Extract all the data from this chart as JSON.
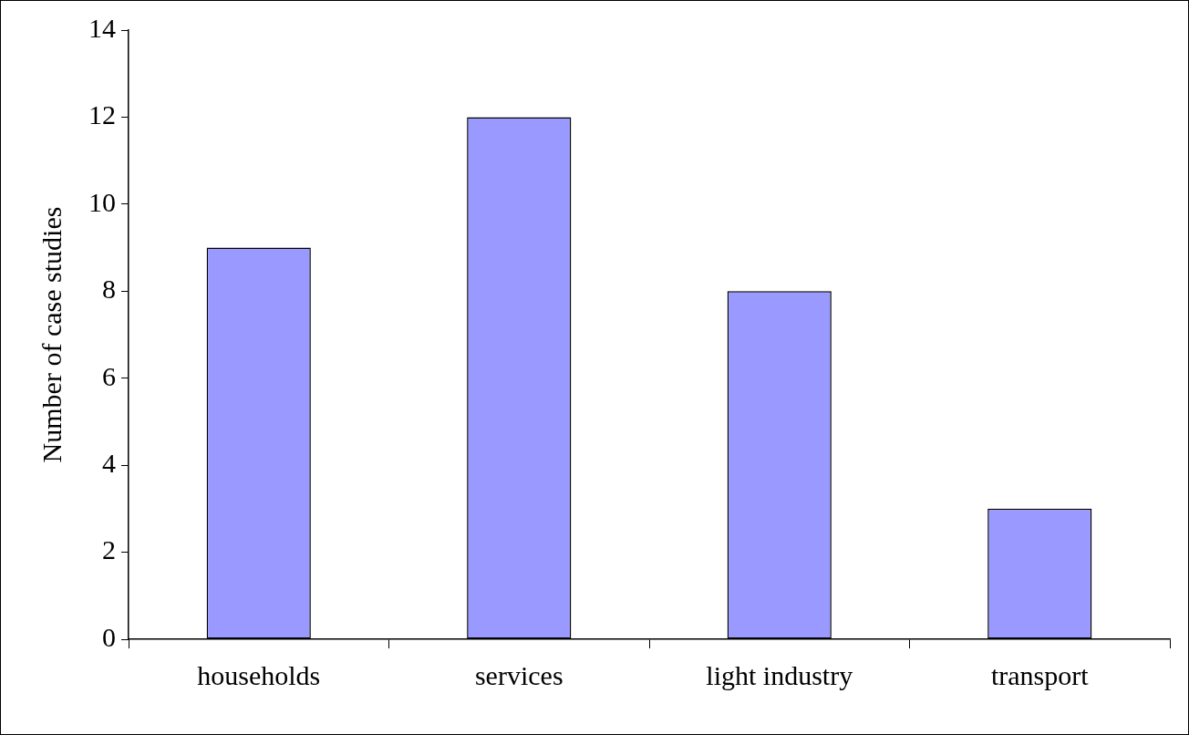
{
  "chart_data": {
    "type": "bar",
    "ylabel": "Number of case studies",
    "categories": [
      "households",
      "services",
      "light industry",
      "transport"
    ],
    "values": [
      9,
      12,
      8,
      3
    ],
    "color": "#9999ff",
    "ylim": [
      0,
      14
    ],
    "yticks": [
      0,
      2,
      4,
      6,
      8,
      10,
      12,
      14
    ],
    "grid": false,
    "legend": false
  }
}
